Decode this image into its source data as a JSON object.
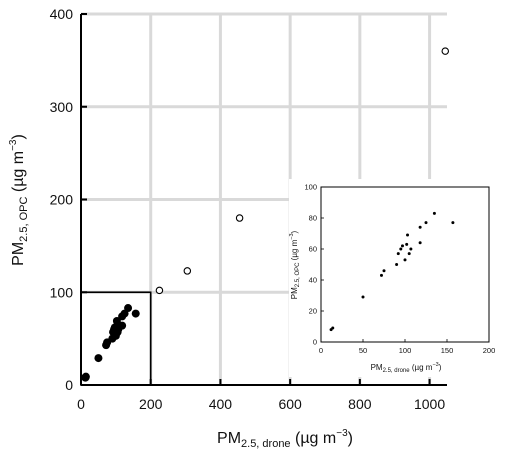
{
  "chart_data": [
    {
      "type": "scatter",
      "title": "",
      "xlabel_main": "PM",
      "xlabel_sub": "2.5, drone",
      "xlabel_unit": " (µg m",
      "xlabel_exp": "−3",
      "xlabel_close": ")",
      "ylabel_main": "PM",
      "ylabel_sub": "2.5, OPC",
      "ylabel_unit": " (µg m",
      "ylabel_exp": "−3",
      "ylabel_close": ")",
      "xlim": [
        0,
        1050
      ],
      "ylim": [
        0,
        400
      ],
      "xticks": [
        "0",
        "200",
        "400",
        "600",
        "800",
        "1000"
      ],
      "xtick_values": [
        0,
        200,
        400,
        600,
        800,
        1000
      ],
      "yticks": [
        "0",
        "100",
        "200",
        "300",
        "400"
      ],
      "ytick_values": [
        0,
        100,
        200,
        300,
        400
      ],
      "grid": true,
      "zoom_box": {
        "x": [
          0,
          200
        ],
        "y": [
          0,
          100
        ]
      },
      "series": [
        {
          "marker": "filled",
          "points": [
            [
              13,
              8
            ],
            [
              14,
              9
            ],
            [
              12,
              8
            ],
            [
              50,
              29
            ],
            [
              72,
              43
            ],
            [
              75,
              46
            ],
            [
              90,
              50
            ],
            [
              92,
              57
            ],
            [
              95,
              60
            ],
            [
              97,
              62
            ],
            [
              100,
              53
            ],
            [
              102,
              63
            ],
            [
              103,
              69
            ],
            [
              105,
              57
            ],
            [
              107,
              60
            ],
            [
              118,
              64
            ],
            [
              118,
              74
            ],
            [
              125,
              77
            ],
            [
              135,
              83
            ],
            [
              157,
              77
            ]
          ]
        },
        {
          "marker": "open",
          "points": [
            [
              225,
              102
            ],
            [
              305,
              123
            ],
            [
              455,
              180
            ],
            [
              1045,
              360
            ]
          ]
        }
      ]
    },
    {
      "type": "scatter",
      "title": "",
      "xlabel_main": "PM",
      "xlabel_sub": "2.5, drone",
      "xlabel_unit": " (µg m",
      "xlabel_exp": "−3",
      "xlabel_close": ")",
      "ylabel_main": "PM",
      "ylabel_sub": "2.5, OPC",
      "ylabel_unit": " (µg m",
      "ylabel_exp": "−3",
      "ylabel_close": ")",
      "xlim": [
        0,
        200
      ],
      "ylim": [
        0,
        100
      ],
      "xticks": [
        "0",
        "50",
        "100",
        "150",
        "200"
      ],
      "xtick_values": [
        0,
        50,
        100,
        150,
        200
      ],
      "yticks": [
        "0",
        "20",
        "40",
        "60",
        "80",
        "100"
      ],
      "ytick_values": [
        0,
        20,
        40,
        60,
        80,
        100
      ],
      "grid": false,
      "series": [
        {
          "marker": "filled",
          "points": [
            [
              12,
              8
            ],
            [
              14,
              9
            ],
            [
              50,
              29
            ],
            [
              72,
              43
            ],
            [
              75,
              46
            ],
            [
              90,
              50
            ],
            [
              92,
              57
            ],
            [
              95,
              60
            ],
            [
              97,
              62
            ],
            [
              100,
              53
            ],
            [
              102,
              63
            ],
            [
              103,
              69
            ],
            [
              105,
              57
            ],
            [
              107,
              60
            ],
            [
              118,
              64
            ],
            [
              118,
              74
            ],
            [
              125,
              77
            ],
            [
              135,
              83
            ],
            [
              157,
              77
            ]
          ]
        }
      ]
    }
  ]
}
